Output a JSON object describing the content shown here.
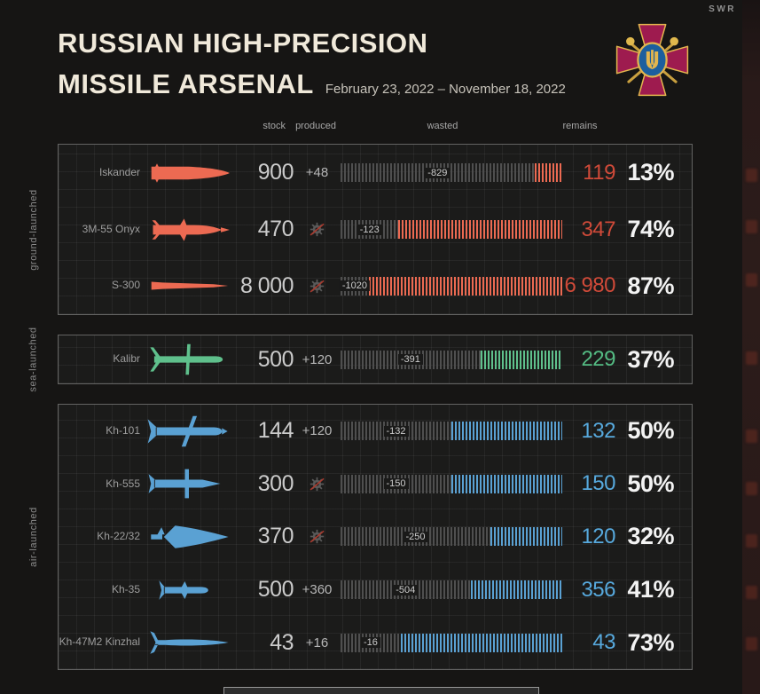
{
  "page": {
    "watermark": "SWR"
  },
  "header": {
    "title_line1": "RUSSIAN HIGH-PRECISION",
    "title_line2": "MISSILE ARSENAL",
    "subtitle": "February 23, 2022 – November 18, 2022",
    "emblem": "ukraine-mod-emblem"
  },
  "columns": {
    "stock": "stock",
    "produced": "produced",
    "wasted": "wasted",
    "remains": "remains"
  },
  "colors": {
    "ground_bar": "#ec6a52",
    "ground_text": "#d04a39",
    "sea_bar": "#5fc08c",
    "sea_text": "#54bb83",
    "air_bar": "#5aa1d3",
    "air_text": "#57a9dd",
    "wasted_bar": "#4f4f4f",
    "percent_text": "#f3f3f3"
  },
  "groups": [
    {
      "label": "ground-launched",
      "color": "ground",
      "rows": [
        {
          "name": "Iskander",
          "icon": "iskander-missile-icon",
          "stock": "900",
          "stock_num": 900,
          "produced": "+48",
          "produced_num": 48,
          "wasted": "-829",
          "wasted_num": 829,
          "remains": "119",
          "remains_num": 119,
          "percent": "13%"
        },
        {
          "name": "3M-55 Onyx",
          "icon": "onyx-missile-icon",
          "stock": "470",
          "stock_num": 470,
          "produced": null,
          "produced_num": 0,
          "wasted": "-123",
          "wasted_num": 123,
          "remains": "347",
          "remains_num": 347,
          "percent": "74%"
        },
        {
          "name": "S-300",
          "icon": "s300-missile-icon",
          "stock": "8 000",
          "stock_num": 8000,
          "produced": null,
          "produced_num": 0,
          "wasted": "-1020",
          "wasted_num": 1020,
          "remains": "6 980",
          "remains_num": 6980,
          "percent": "87%"
        }
      ]
    },
    {
      "label": "sea-launched",
      "color": "sea",
      "rows": [
        {
          "name": "Kalibr",
          "icon": "kalibr-missile-icon",
          "stock": "500",
          "stock_num": 500,
          "produced": "+120",
          "produced_num": 120,
          "wasted": "-391",
          "wasted_num": 391,
          "remains": "229",
          "remains_num": 229,
          "percent": "37%"
        }
      ]
    },
    {
      "label": "air-launched",
      "color": "air",
      "rows": [
        {
          "name": "Kh-101",
          "icon": "kh101-missile-icon",
          "stock": "144",
          "stock_num": 144,
          "produced": "+120",
          "produced_num": 120,
          "wasted": "-132",
          "wasted_num": 132,
          "remains": "132",
          "remains_num": 132,
          "percent": "50%"
        },
        {
          "name": "Kh-555",
          "icon": "kh555-missile-icon",
          "stock": "300",
          "stock_num": 300,
          "produced": null,
          "produced_num": 0,
          "wasted": "-150",
          "wasted_num": 150,
          "remains": "150",
          "remains_num": 150,
          "percent": "50%"
        },
        {
          "name": "Kh-22/32",
          "icon": "kh2232-missile-icon",
          "stock": "370",
          "stock_num": 370,
          "produced": null,
          "produced_num": 0,
          "wasted": "-250",
          "wasted_num": 250,
          "remains": "120",
          "remains_num": 120,
          "percent": "32%"
        },
        {
          "name": "Kh-35",
          "icon": "kh35-missile-icon",
          "stock": "500",
          "stock_num": 500,
          "produced": "+360",
          "produced_num": 360,
          "wasted": "-504",
          "wasted_num": 504,
          "remains": "356",
          "remains_num": 356,
          "percent": "41%"
        },
        {
          "name": "Kh-47M2 Kinzhal",
          "icon": "kinzhal-missile-icon",
          "stock": "43",
          "stock_num": 43,
          "produced": "+16",
          "produced_num": 16,
          "wasted": "-16",
          "wasted_num": 16,
          "remains": "43",
          "remains_num": 43,
          "percent": "73%"
        }
      ]
    }
  ],
  "chart_data": {
    "type": "bar",
    "title": "RUSSIAN HIGH-PRECISION MISSILE ARSENAL",
    "subtitle": "February 23, 2022 – November 18, 2022",
    "categories": [
      "Iskander",
      "3M-55 Onyx",
      "S-300",
      "Kalibr",
      "Kh-101",
      "Kh-555",
      "Kh-22/32",
      "Kh-35",
      "Kh-47M2 Kinzhal"
    ],
    "category_groups": [
      "ground-launched",
      "ground-launched",
      "ground-launched",
      "sea-launched",
      "air-launched",
      "air-launched",
      "air-launched",
      "air-launched",
      "air-launched"
    ],
    "series": [
      {
        "name": "stock",
        "values": [
          900,
          470,
          8000,
          500,
          144,
          300,
          370,
          500,
          43
        ]
      },
      {
        "name": "produced",
        "values": [
          48,
          0,
          0,
          120,
          120,
          0,
          0,
          360,
          16
        ]
      },
      {
        "name": "wasted",
        "values": [
          829,
          123,
          1020,
          391,
          132,
          150,
          250,
          504,
          16
        ]
      },
      {
        "name": "remains",
        "values": [
          119,
          347,
          6980,
          229,
          132,
          150,
          120,
          356,
          43
        ]
      },
      {
        "name": "remains_percent",
        "values": [
          13,
          74,
          87,
          37,
          50,
          50,
          32,
          41,
          73
        ]
      }
    ],
    "legend_position": "column headers on top",
    "notes": "Each bar splits (stock + produced) into wasted (gray hatch) and remains (colored hatch); crossed-out gear icon means no production."
  }
}
